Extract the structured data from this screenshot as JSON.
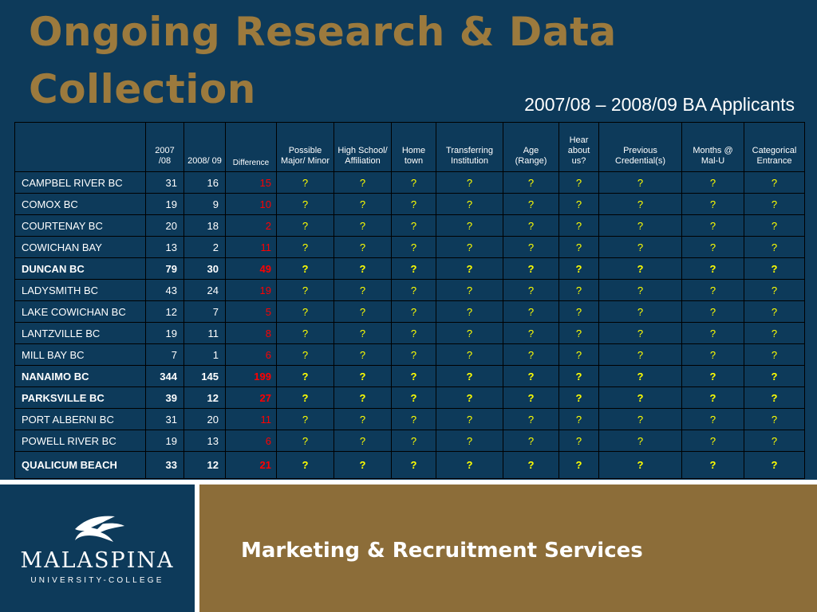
{
  "slide": {
    "title": "Ongoing Research & Data Collection",
    "subtitle": "2007/08 – 2008/09 BA Applicants"
  },
  "table": {
    "headers": {
      "location": "",
      "y2007": "2007 /08",
      "y2008": "2008/ 09",
      "difference": "Difference",
      "major_minor": "Possible Major/ Minor",
      "high_school": "High School/ Affiliation",
      "home_town": "Home town",
      "transferring": "Transferring Institution",
      "age": "Age (Range)",
      "hear_about": "Hear about us?",
      "previous": "Previous Credential(s)",
      "months": "Months @ Mal-U",
      "categorical": "Categorical Entrance"
    },
    "rows": [
      {
        "location": "CAMPBEL RIVER BC",
        "y2007": "31",
        "y2008": "16",
        "difference": "15",
        "bold": false
      },
      {
        "location": "COMOX  BC",
        "y2007": "19",
        "y2008": "9",
        "difference": "10",
        "bold": false
      },
      {
        "location": "COURTENAY  BC",
        "y2007": "20",
        "y2008": "18",
        "difference": "2",
        "bold": false
      },
      {
        "location": "COWICHAN BAY",
        "y2007": "13",
        "y2008": "2",
        "difference": "11",
        "bold": false
      },
      {
        "location": "DUNCAN BC",
        "y2007": "79",
        "y2008": "30",
        "difference": "49",
        "bold": true
      },
      {
        "location": "LADYSMITH BC",
        "y2007": "43",
        "y2008": "24",
        "difference": "19",
        "bold": false
      },
      {
        "location": "LAKE COWICHAN BC",
        "y2007": "12",
        "y2008": "7",
        "difference": "5",
        "bold": false
      },
      {
        "location": "LANTZVILLE BC",
        "y2007": "19",
        "y2008": "11",
        "difference": "8",
        "bold": false
      },
      {
        "location": "MILL BAY BC",
        "y2007": "7",
        "y2008": "1",
        "difference": "6",
        "bold": false
      },
      {
        "location": "NANAIMO BC",
        "y2007": "344",
        "y2008": "145",
        "difference": "199",
        "bold": true
      },
      {
        "location": "PARKSVILLE BC",
        "y2007": "39",
        "y2008": "12",
        "difference": "27",
        "bold": true
      },
      {
        "location": "PORT ALBERNI BC",
        "y2007": "31",
        "y2008": "20",
        "difference": "11",
        "bold": false
      },
      {
        "location": "POWELL RIVER BC",
        "y2007": "19",
        "y2008": "13",
        "difference": "6",
        "bold": false
      },
      {
        "location": "QUALICUM BEACH",
        "y2007": "33",
        "y2008": "12",
        "difference": "21",
        "bold": true
      }
    ],
    "unknown_placeholder": "?"
  },
  "footer": {
    "logo_name": "MALASPINA",
    "logo_sub": "UNIVERSITY-COLLEGE",
    "department": "Marketing & Recruitment Services"
  },
  "colors": {
    "background": "#0d3a5a",
    "title": "#9c7a3d",
    "footer_band": "#8c6d39",
    "difference_text": "#ff0000",
    "unknown_text": "#ffff00"
  },
  "icons": {
    "logo": "eagle-wing-logo-icon"
  }
}
